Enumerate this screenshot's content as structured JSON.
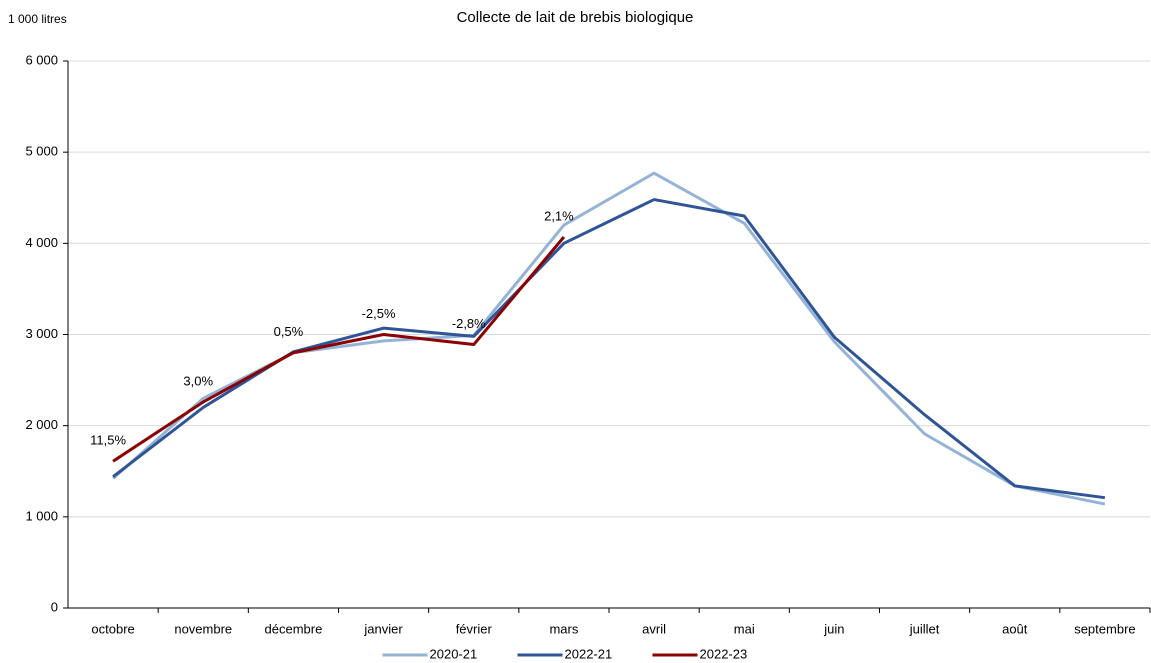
{
  "chart_data": {
    "type": "line",
    "title": "Collecte de lait de brebis biologique",
    "y_axis_label": "1 000 litres",
    "categories": [
      "octobre",
      "novembre",
      "décembre",
      "janvier",
      "février",
      "mars",
      "avril",
      "mai",
      "juin",
      "juillet",
      "août",
      "septembre"
    ],
    "series": [
      {
        "name": "2020-21",
        "color": "#95b3d7",
        "values": [
          1420,
          2300,
          2800,
          2930,
          2990,
          4200,
          4770,
          4220,
          2920,
          1910,
          1340,
          1140
        ]
      },
      {
        "name": "2022-21",
        "color": "#2f5597",
        "values": [
          1440,
          2200,
          2810,
          3070,
          2980,
          4000,
          4480,
          4300,
          2970,
          2120,
          1340,
          1210
        ]
      },
      {
        "name": "2022-23",
        "color": "#8b0000",
        "values": [
          1610,
          2260,
          2800,
          3000,
          2890,
          4070,
          null,
          null,
          null,
          null,
          null,
          null
        ]
      }
    ],
    "annotations": [
      "11,5%",
      "3,0%",
      "0,5%",
      "-2,5%",
      "-2,8%",
      "2,1%",
      null,
      null,
      null,
      null,
      null,
      null
    ],
    "ylim": [
      0,
      6000
    ],
    "yticks": [
      0,
      {
        "value": 1000,
        "label": "1 000"
      },
      {
        "value": 2000,
        "label": "2 000"
      },
      {
        "value": 3000,
        "label": "3 000"
      },
      {
        "value": 4000,
        "label": "4 000"
      },
      {
        "value": 5000,
        "label": "5 000"
      },
      {
        "value": 6000,
        "label": "6 000"
      }
    ],
    "grid": true,
    "legend": "bottom"
  }
}
